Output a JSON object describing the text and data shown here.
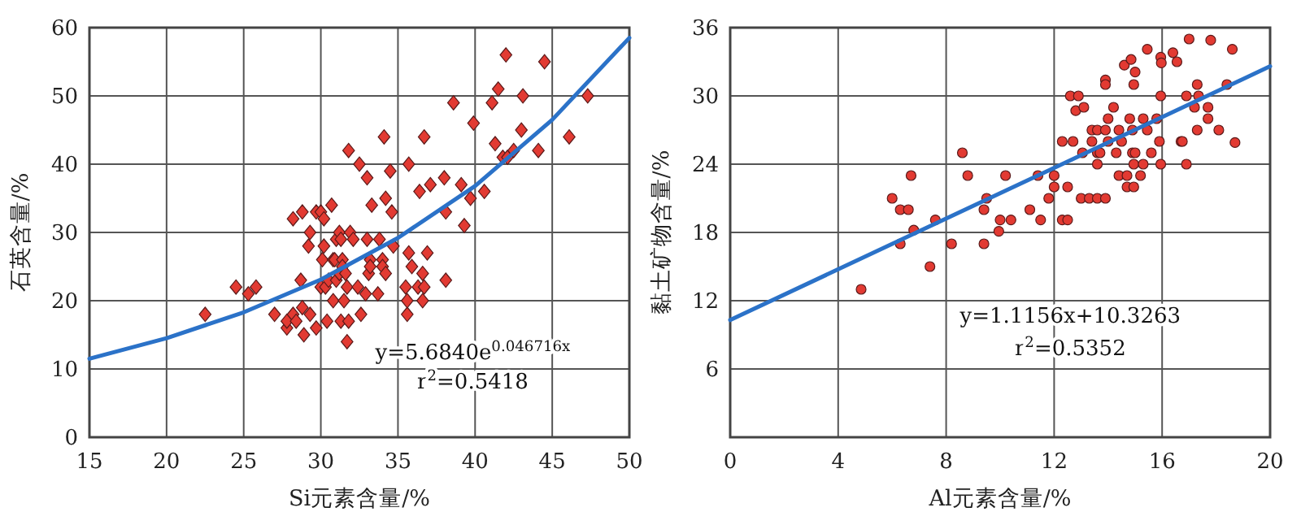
{
  "chart_data": [
    {
      "type": "scatter",
      "xlabel": "Si元素含量/%",
      "ylabel": "石英含量/%",
      "xlim": [
        15,
        50
      ],
      "ylim": [
        0,
        60
      ],
      "xticks": [
        15,
        20,
        25,
        30,
        35,
        40,
        45,
        50
      ],
      "yticks": [
        0,
        10,
        20,
        30,
        40,
        50,
        60
      ],
      "grid": true,
      "annotations": [
        "y=5.6840e$^{0.046716x}$",
        "r$^{2}$=0.5418"
      ],
      "series": [
        {
          "type": "scatter",
          "marker": "diamond",
          "color": "#e23a32",
          "x": [
            22.5,
            24.5,
            25.3,
            25.8,
            27.0,
            27.8,
            27.8,
            28.2,
            28.4,
            28.2,
            28.7,
            28.8,
            28.8,
            28.9,
            29.2,
            29.3,
            29.3,
            29.7,
            29.7,
            30.0,
            30.0,
            30.1,
            30.2,
            30.2,
            30.3,
            30.4,
            30.5,
            30.7,
            30.8,
            30.8,
            30.9,
            31.0,
            31.0,
            31.2,
            31.2,
            31.3,
            31.3,
            31.4,
            31.4,
            31.5,
            31.6,
            31.7,
            31.7,
            31.8,
            31.8,
            31.9,
            32.1,
            32.4,
            32.5,
            32.6,
            32.9,
            33.0,
            33.0,
            33.1,
            33.2,
            33.2,
            33.3,
            33.7,
            33.8,
            34.0,
            34.0,
            34.1,
            34.2,
            34.2,
            34.5,
            34.6,
            34.7,
            35.5,
            35.6,
            35.6,
            35.7,
            35.7,
            35.9,
            36.3,
            36.4,
            36.6,
            36.6,
            36.7,
            36.7,
            36.9,
            37.1,
            38.0,
            38.1,
            38.1,
            38.6,
            39.1,
            39.3,
            39.7,
            39.9,
            40.6,
            41.1,
            41.3,
            41.5,
            41.8,
            42.0,
            42.1,
            42.5,
            43.0,
            43.1,
            44.1,
            44.5,
            46.1,
            47.3
          ],
          "values": [
            18,
            22,
            21,
            22,
            18,
            16,
            17,
            18,
            17,
            32,
            23,
            19,
            33,
            15,
            28,
            30,
            18,
            33,
            16,
            33,
            22,
            26,
            28,
            32,
            22,
            17,
            23,
            34,
            20,
            26,
            26,
            23,
            29,
            24,
            30,
            17,
            29,
            26,
            25,
            20,
            24,
            22,
            14,
            42,
            17,
            30,
            29,
            22,
            40,
            18,
            21,
            38,
            29,
            24,
            26,
            25,
            34,
            21,
            29,
            26,
            25,
            44,
            24,
            35,
            39,
            33,
            28,
            22,
            18,
            20,
            40,
            27,
            25,
            22,
            36,
            24,
            20,
            22,
            44,
            27,
            37,
            38,
            23,
            33,
            49,
            37,
            31,
            35,
            46,
            36,
            49,
            43,
            51,
            41,
            56,
            41,
            42,
            45,
            50,
            42,
            55,
            44,
            50
          ]
        },
        {
          "type": "line",
          "color": "#2b72c8",
          "x": [
            15,
            20,
            25,
            30,
            35,
            40,
            45,
            50
          ],
          "values": [
            11.5,
            14.5,
            18.3,
            23.1,
            29.2,
            36.8,
            46.5,
            58.5
          ]
        }
      ]
    },
    {
      "type": "scatter",
      "xlabel": "Al元素含量/%",
      "ylabel": "黏土矿物含量/%",
      "xlim": [
        0,
        20
      ],
      "ylim": [
        0,
        36
      ],
      "xticks": [
        0,
        4,
        8,
        12,
        16,
        20
      ],
      "yticks": [
        {
          "value": 0,
          "label": null
        },
        6,
        12,
        18,
        24,
        30,
        36
      ],
      "grid": true,
      "annotations": [
        "y=1.1156x+10.3263",
        "r$^{2}$=0.5352"
      ],
      "series": [
        {
          "type": "scatter",
          "marker": "circle",
          "color": "#e23a32",
          "x": [
            4.85,
            6.0,
            6.3,
            6.3,
            6.6,
            6.7,
            6.8,
            7.4,
            7.6,
            8.2,
            8.6,
            8.8,
            9.4,
            9.4,
            9.5,
            9.95,
            10.0,
            10.2,
            10.4,
            11.1,
            11.4,
            11.5,
            11.8,
            12.0,
            12.0,
            12.3,
            12.3,
            12.5,
            12.5,
            12.6,
            12.7,
            12.8,
            12.9,
            13.0,
            13.1,
            13.05,
            13.3,
            13.4,
            13.4,
            13.6,
            13.6,
            13.6,
            13.6,
            13.7,
            13.9,
            13.9,
            13.9,
            13.9,
            14.0,
            14.0,
            14.2,
            14.3,
            14.4,
            14.4,
            14.5,
            14.6,
            14.7,
            14.7,
            14.8,
            14.85,
            14.9,
            14.9,
            14.95,
            14.95,
            14.95,
            15.0,
            15.0,
            15.2,
            15.3,
            15.3,
            15.45,
            15.45,
            15.6,
            15.8,
            15.9,
            15.95,
            15.95,
            15.95,
            15.97,
            16.4,
            16.55,
            16.7,
            16.75,
            16.9,
            16.9,
            17.0,
            17.2,
            17.3,
            17.3,
            17.35,
            17.7,
            17.7,
            17.8,
            18.1,
            18.4,
            18.6,
            18.7
          ],
          "values": [
            13,
            21,
            20,
            17,
            20,
            23,
            18.2,
            15,
            19.1,
            17,
            25,
            23,
            17,
            20,
            21,
            18.1,
            19.1,
            23,
            19.1,
            20,
            23,
            19.1,
            21,
            22,
            23,
            26,
            19.1,
            19.1,
            22,
            30,
            26,
            28.7,
            30,
            21,
            29,
            25,
            21,
            27,
            26,
            27,
            24,
            21,
            25,
            25,
            27,
            31.4,
            31,
            21,
            28,
            26,
            29,
            25,
            23,
            27,
            26,
            32.7,
            23,
            22,
            28,
            33.2,
            25,
            27,
            31,
            24,
            22,
            25,
            32.1,
            23,
            28,
            24,
            27,
            34.1,
            25,
            28,
            26,
            33.4,
            24,
            30,
            32.9,
            33.8,
            33,
            26,
            26,
            30,
            24,
            35,
            29,
            27,
            31,
            30,
            28,
            29,
            34.9,
            27,
            31,
            34.1,
            25.9
          ]
        },
        {
          "type": "line",
          "color": "#2b72c8",
          "x": [
            0,
            20
          ],
          "values": [
            10.3,
            32.6
          ]
        }
      ]
    }
  ]
}
